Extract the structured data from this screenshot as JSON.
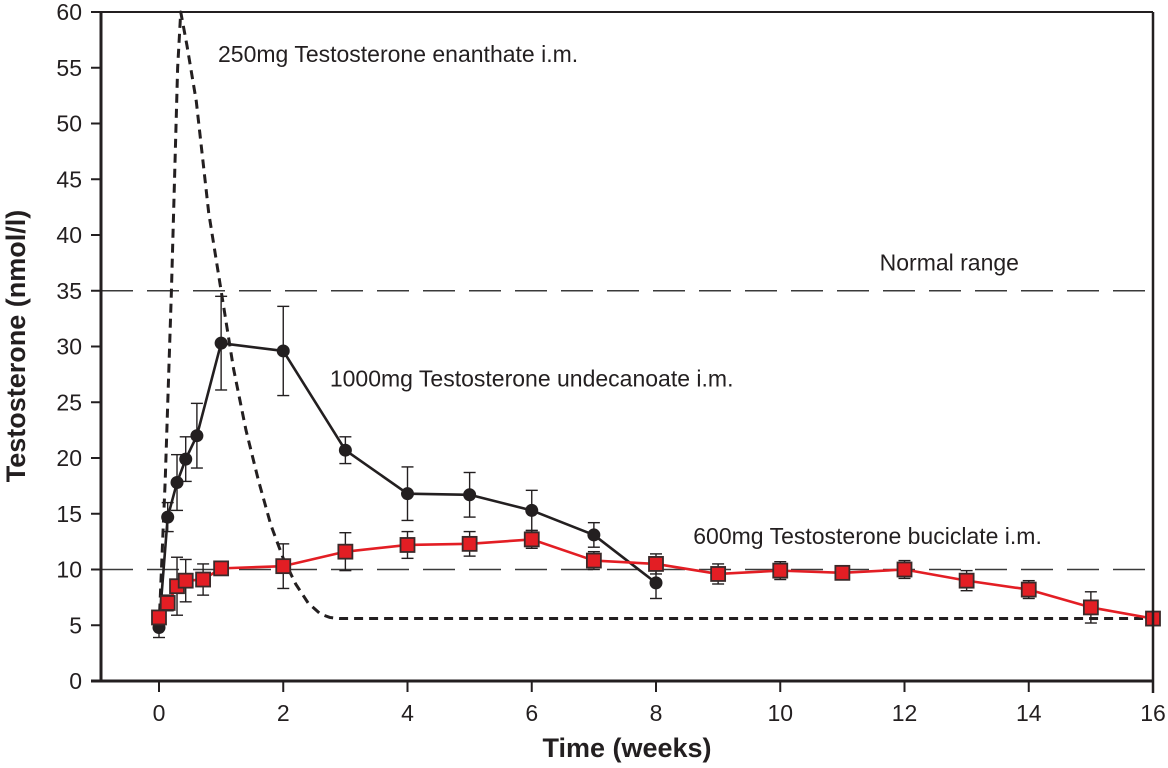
{
  "chart_data": {
    "type": "line",
    "title": "",
    "xlabel": "Time (weeks)",
    "ylabel": "Testosterone (nmol/l)",
    "xlim": [
      -0.94,
      16
    ],
    "ylim": [
      0,
      60
    ],
    "xticks": [
      0,
      2,
      4,
      6,
      8,
      10,
      12,
      14,
      16
    ],
    "yticks": [
      0,
      5,
      10,
      15,
      20,
      25,
      30,
      35,
      40,
      45,
      50,
      55,
      60
    ],
    "grid": false,
    "reference_lines": [
      {
        "name": "normal-range-upper",
        "y": 35,
        "style": "dashed",
        "color": "#3a3a3a"
      },
      {
        "name": "normal-range-lower",
        "y": 10,
        "style": "dashed",
        "color": "#3a3a3a"
      }
    ],
    "annotations": [
      {
        "name": "label-enanthate",
        "text": "250mg Testosterone enanthate i.m.",
        "x": 0.95,
        "y": 55.5
      },
      {
        "name": "label-normal-range",
        "text": "Normal range",
        "x": 11.6,
        "y": 36.8
      },
      {
        "name": "label-undecanoate",
        "text": "1000mg Testosterone undecanoate i.m.",
        "x": 2.75,
        "y": 26.4
      },
      {
        "name": "label-buciclate",
        "text": "600mg Testosterone buciclate i.m.",
        "x": 8.6,
        "y": 12.3
      }
    ],
    "series": [
      {
        "name": "250mg Testosterone enanthate i.m.",
        "style": "dotted",
        "color": "#231f20",
        "marker": "none",
        "x": [
          0,
          0.1,
          0.2,
          0.3,
          0.35,
          0.45,
          0.6,
          0.8,
          1.0,
          1.2,
          1.4,
          1.6,
          1.8,
          2.0,
          2.2,
          2.4,
          2.6,
          2.75,
          2.9,
          3.1,
          16
        ],
        "y": [
          4.8,
          18,
          35,
          55,
          60,
          57,
          52,
          42,
          35,
          28,
          22.5,
          18,
          14,
          11,
          8.7,
          7,
          6,
          5.7,
          5.6,
          5.6,
          5.6
        ]
      },
      {
        "name": "1000mg Testosterone undecanoate i.m.",
        "style": "solid",
        "color": "#231f20",
        "marker": "circle",
        "x": [
          0,
          0.14,
          0.29,
          0.43,
          0.61,
          1,
          2,
          3,
          4,
          5,
          6,
          7,
          8
        ],
        "y": [
          4.8,
          14.7,
          17.8,
          19.9,
          22.0,
          30.3,
          29.6,
          20.7,
          16.8,
          16.7,
          15.3,
          13.1,
          8.8
        ],
        "err": [
          0.9,
          1.3,
          2.5,
          2.0,
          2.9,
          4.2,
          4.0,
          1.2,
          2.4,
          2.0,
          1.8,
          1.1,
          1.4
        ]
      },
      {
        "name": "600mg Testosterone buciclate i.m.",
        "style": "solid",
        "color": "#e31e24",
        "marker": "square",
        "x": [
          0,
          0.14,
          0.29,
          0.43,
          0.71,
          1,
          2,
          3,
          4,
          5,
          6,
          7,
          8,
          9,
          10,
          11,
          12,
          13,
          14,
          15,
          16
        ],
        "y": [
          5.7,
          7.0,
          8.5,
          9.0,
          9.1,
          10.1,
          10.3,
          11.6,
          12.2,
          12.3,
          12.7,
          10.8,
          10.5,
          9.6,
          9.9,
          9.7,
          10.0,
          9.0,
          8.2,
          6.6,
          5.6
        ],
        "err": [
          0.5,
          0.7,
          2.6,
          1.9,
          1.4,
          0.5,
          2.0,
          1.7,
          1.2,
          1.1,
          0.8,
          0.8,
          0.9,
          0.9,
          0.8,
          0.6,
          0.8,
          0.9,
          0.8,
          1.4,
          0.6
        ]
      }
    ]
  }
}
